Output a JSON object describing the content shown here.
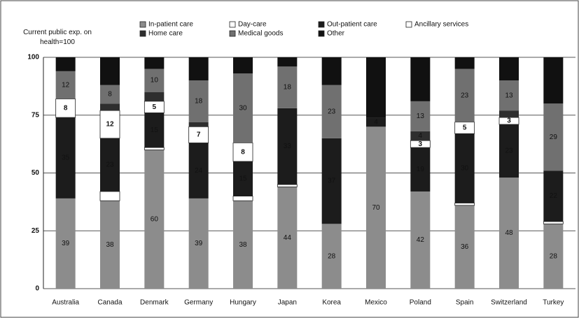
{
  "chart_data": {
    "type": "stacked_bar",
    "y_label": "Current public exp. on health=100",
    "categories": [
      "Australia",
      "Canada",
      "Denmark",
      "Germany",
      "Hungary",
      "Japan",
      "Korea",
      "Mexico",
      "Poland",
      "Spain",
      "Switzerland",
      "Turkey"
    ],
    "series": [
      {
        "name": "In-patient care",
        "color": "#8c8c8c",
        "values": [
          39,
          38,
          60,
          39,
          38,
          44,
          28,
          70,
          42,
          36,
          48,
          28
        ],
        "value_labels": [
          "39",
          "38",
          "60",
          "39",
          "38",
          "44",
          "28",
          "70",
          "42",
          "36",
          "48",
          "28"
        ]
      },
      {
        "name": "Day-care",
        "color": "#ffffff",
        "values": [
          0,
          4,
          1,
          0,
          2,
          1,
          0,
          0,
          0,
          1,
          0,
          1
        ],
        "value_labels": [
          null,
          null,
          null,
          null,
          null,
          null,
          null,
          null,
          null,
          null,
          null,
          null
        ]
      },
      {
        "name": "Out-patient care",
        "color": "#1c1c1c",
        "values": [
          35,
          23,
          15,
          24,
          15,
          33,
          37,
          4,
          19,
          30,
          23,
          22
        ],
        "value_labels": [
          "35",
          "23",
          "15",
          "24",
          "15",
          "33",
          "37",
          "4",
          "19",
          "30",
          "23",
          "22"
        ]
      },
      {
        "name": "Ancillary services",
        "color": "#ffffff",
        "values": [
          8,
          12,
          5,
          7,
          8,
          0,
          0,
          0,
          3,
          5,
          3,
          0
        ],
        "value_labels": [
          "8",
          "12",
          "5",
          "7",
          "8",
          null,
          null,
          null,
          "3",
          "5",
          "3",
          null
        ]
      },
      {
        "name": "Home care",
        "color": "#2e2e2e",
        "values": [
          0,
          3,
          4,
          2,
          0,
          0,
          0,
          0,
          4,
          0,
          3,
          0
        ],
        "value_labels": [
          null,
          null,
          null,
          null,
          null,
          null,
          null,
          null,
          "4",
          null,
          null,
          null
        ]
      },
      {
        "name": "Medical goods",
        "color": "#707070",
        "values": [
          12,
          8,
          10,
          18,
          30,
          18,
          23,
          0,
          13,
          23,
          13,
          29
        ],
        "value_labels": [
          "12",
          "8",
          "10",
          "18",
          "30",
          "18",
          "23",
          null,
          "13",
          "23",
          "13",
          "29"
        ]
      },
      {
        "name": "Other",
        "color": "#111111",
        "values": [
          6,
          12,
          5,
          10,
          7,
          4,
          12,
          26,
          19,
          5,
          10,
          20
        ],
        "value_labels": [
          null,
          null,
          null,
          null,
          null,
          null,
          null,
          null,
          null,
          null,
          null,
          null
        ]
      }
    ],
    "ylim": [
      0,
      100
    ],
    "yticks": [
      0,
      25,
      50,
      75,
      100
    ],
    "grid": true
  }
}
